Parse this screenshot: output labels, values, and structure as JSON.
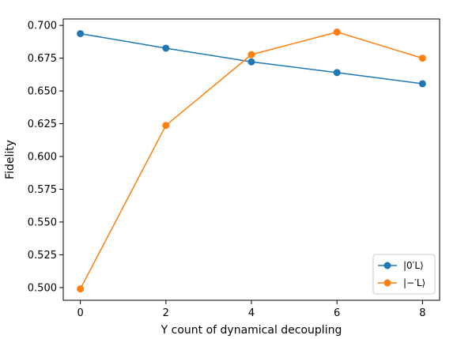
{
  "chart_data": {
    "type": "line",
    "title": "",
    "xlabel": "Y count of dynamical decoupling",
    "ylabel": "Fidelity",
    "x": [
      0,
      2,
      4,
      6,
      8
    ],
    "xlim": [
      -0.4,
      8.4
    ],
    "ylim": [
      0.4903,
      0.7049
    ],
    "xticks": [
      0,
      2,
      4,
      6,
      8
    ],
    "xtick_labels": [
      "0",
      "2",
      "4",
      "6",
      "8"
    ],
    "yticks": [
      0.5,
      0.525,
      0.55,
      0.575,
      0.6,
      0.625,
      0.65,
      0.675,
      0.7
    ],
    "ytick_labels": [
      "0.500",
      "0.525",
      "0.550",
      "0.575",
      "0.600",
      "0.625",
      "0.650",
      "0.675",
      "0.700"
    ],
    "grid": false,
    "legend_position": "lower-right",
    "series": [
      {
        "name": "|0′L⟩",
        "color": "#1f77b4",
        "values": [
          0.6937,
          0.6826,
          0.6722,
          0.664,
          0.6555
        ]
      },
      {
        "name": "|−′L⟩",
        "color": "#ff7f0e",
        "values": [
          0.499,
          0.6237,
          0.6777,
          0.6949,
          0.675
        ]
      }
    ]
  }
}
